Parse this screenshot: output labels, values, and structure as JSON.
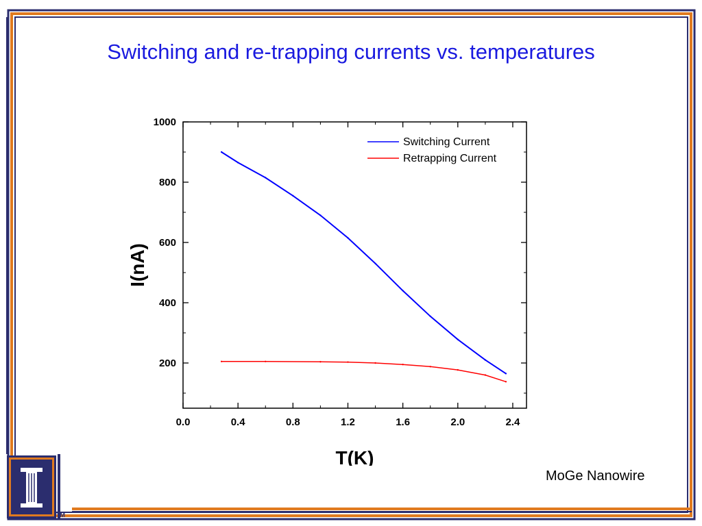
{
  "slide": {
    "title": "Switching and re-trapping currents vs. temperatures",
    "caption": "MoGe Nanowire",
    "logo_mark": "TM"
  },
  "colors": {
    "title": "#1a1adf",
    "frame_navy": "#2b2d6e",
    "frame_orange": "#e07a1f",
    "switching": "#0000ff",
    "retrapping": "#ff0000"
  },
  "icons": {
    "logo": "university-column-logo-icon"
  },
  "chart_data": {
    "type": "line",
    "xlabel": "T(K)",
    "ylabel": "I(nA)",
    "xlim": [
      0.0,
      2.5
    ],
    "ylim": [
      50,
      1000
    ],
    "xticks": [
      0.0,
      0.4,
      0.8,
      1.2,
      1.6,
      2.0,
      2.4
    ],
    "xtick_labels": [
      "0.0",
      "0.4",
      "0.8",
      "1.2",
      "1.6",
      "2.0",
      "2.4"
    ],
    "yticks": [
      200,
      400,
      600,
      800,
      1000
    ],
    "ytick_labels": [
      "200",
      "400",
      "600",
      "800",
      "1000"
    ],
    "legend_position": "top-right",
    "grid": false,
    "series": [
      {
        "name": "Switching Current",
        "x": [
          0.28,
          0.4,
          0.6,
          0.8,
          1.0,
          1.2,
          1.4,
          1.6,
          1.8,
          2.0,
          2.2,
          2.35
        ],
        "y": [
          900,
          865,
          815,
          755,
          690,
          615,
          530,
          440,
          355,
          278,
          210,
          165
        ]
      },
      {
        "name": "Retrapping Current",
        "x": [
          0.28,
          0.6,
          1.0,
          1.2,
          1.4,
          1.6,
          1.8,
          2.0,
          2.2,
          2.35
        ],
        "y": [
          205,
          205,
          204,
          203,
          200,
          195,
          188,
          177,
          160,
          138
        ]
      }
    ]
  }
}
